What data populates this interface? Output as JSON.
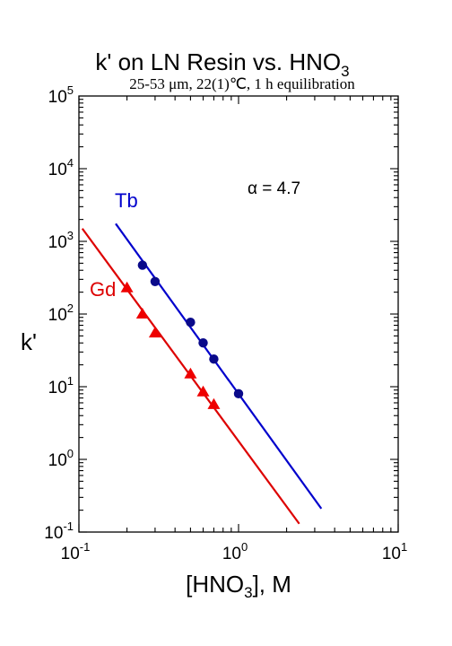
{
  "chart_data": {
    "type": "scatter",
    "title": "k' on LN Resin vs. HNO3",
    "title_main": "k' on LN Resin vs. HNO",
    "title_sub_index": "3",
    "subtitle_parts": [
      "25-53 ",
      "μm, 22(1)",
      "℃, 1 h equilibration"
    ],
    "subtitle": "25-53 μm, 22(1)℃, 1 h equilibration",
    "xlabel": "[HNO3], M",
    "xlabel_parts": [
      "[HNO",
      "3",
      "], M"
    ],
    "ylabel": "k'",
    "x_scale": "log",
    "y_scale": "log",
    "xlim": [
      0.1,
      10
    ],
    "ylim": [
      0.1,
      100000
    ],
    "x_ticks": [
      {
        "value": 0.1,
        "base": "10",
        "exp": "-1"
      },
      {
        "value": 1,
        "base": "10",
        "exp": "0"
      },
      {
        "value": 10,
        "base": "10",
        "exp": "1"
      }
    ],
    "y_ticks": [
      {
        "value": 0.1,
        "base": "10",
        "exp": "-1"
      },
      {
        "value": 1,
        "base": "10",
        "exp": "0"
      },
      {
        "value": 10,
        "base": "10",
        "exp": "1"
      },
      {
        "value": 100,
        "base": "10",
        "exp": "2"
      },
      {
        "value": 1000,
        "base": "10",
        "exp": "3"
      },
      {
        "value": 10000,
        "base": "10",
        "exp": "4"
      },
      {
        "value": 100000,
        "base": "10",
        "exp": "5"
      }
    ],
    "grid": false,
    "annotation": "α = 4.7",
    "series": [
      {
        "name": "Tb",
        "color": "#0000cc",
        "point_color": "#0a0a8a",
        "marker": "circle",
        "points": [
          {
            "x": 0.25,
            "y": 470
          },
          {
            "x": 0.3,
            "y": 280
          },
          {
            "x": 0.5,
            "y": 77
          },
          {
            "x": 0.6,
            "y": 40
          },
          {
            "x": 0.7,
            "y": 24
          },
          {
            "x": 1.0,
            "y": 8
          }
        ],
        "fit_line": [
          {
            "x": 0.17,
            "y": 1750
          },
          {
            "x": 3.3,
            "y": 0.21
          }
        ]
      },
      {
        "name": "Gd",
        "color": "#dd0000",
        "point_color": "#ee0000",
        "marker": "triangle",
        "points": [
          {
            "x": 0.2,
            "y": 230
          },
          {
            "x": 0.25,
            "y": 100
          },
          {
            "x": 0.3,
            "y": 55
          },
          {
            "x": 0.5,
            "y": 15
          },
          {
            "x": 0.6,
            "y": 8.5
          },
          {
            "x": 0.7,
            "y": 5.7
          }
        ],
        "fit_line": [
          {
            "x": 0.105,
            "y": 1500
          },
          {
            "x": 2.4,
            "y": 0.13
          }
        ]
      }
    ]
  }
}
